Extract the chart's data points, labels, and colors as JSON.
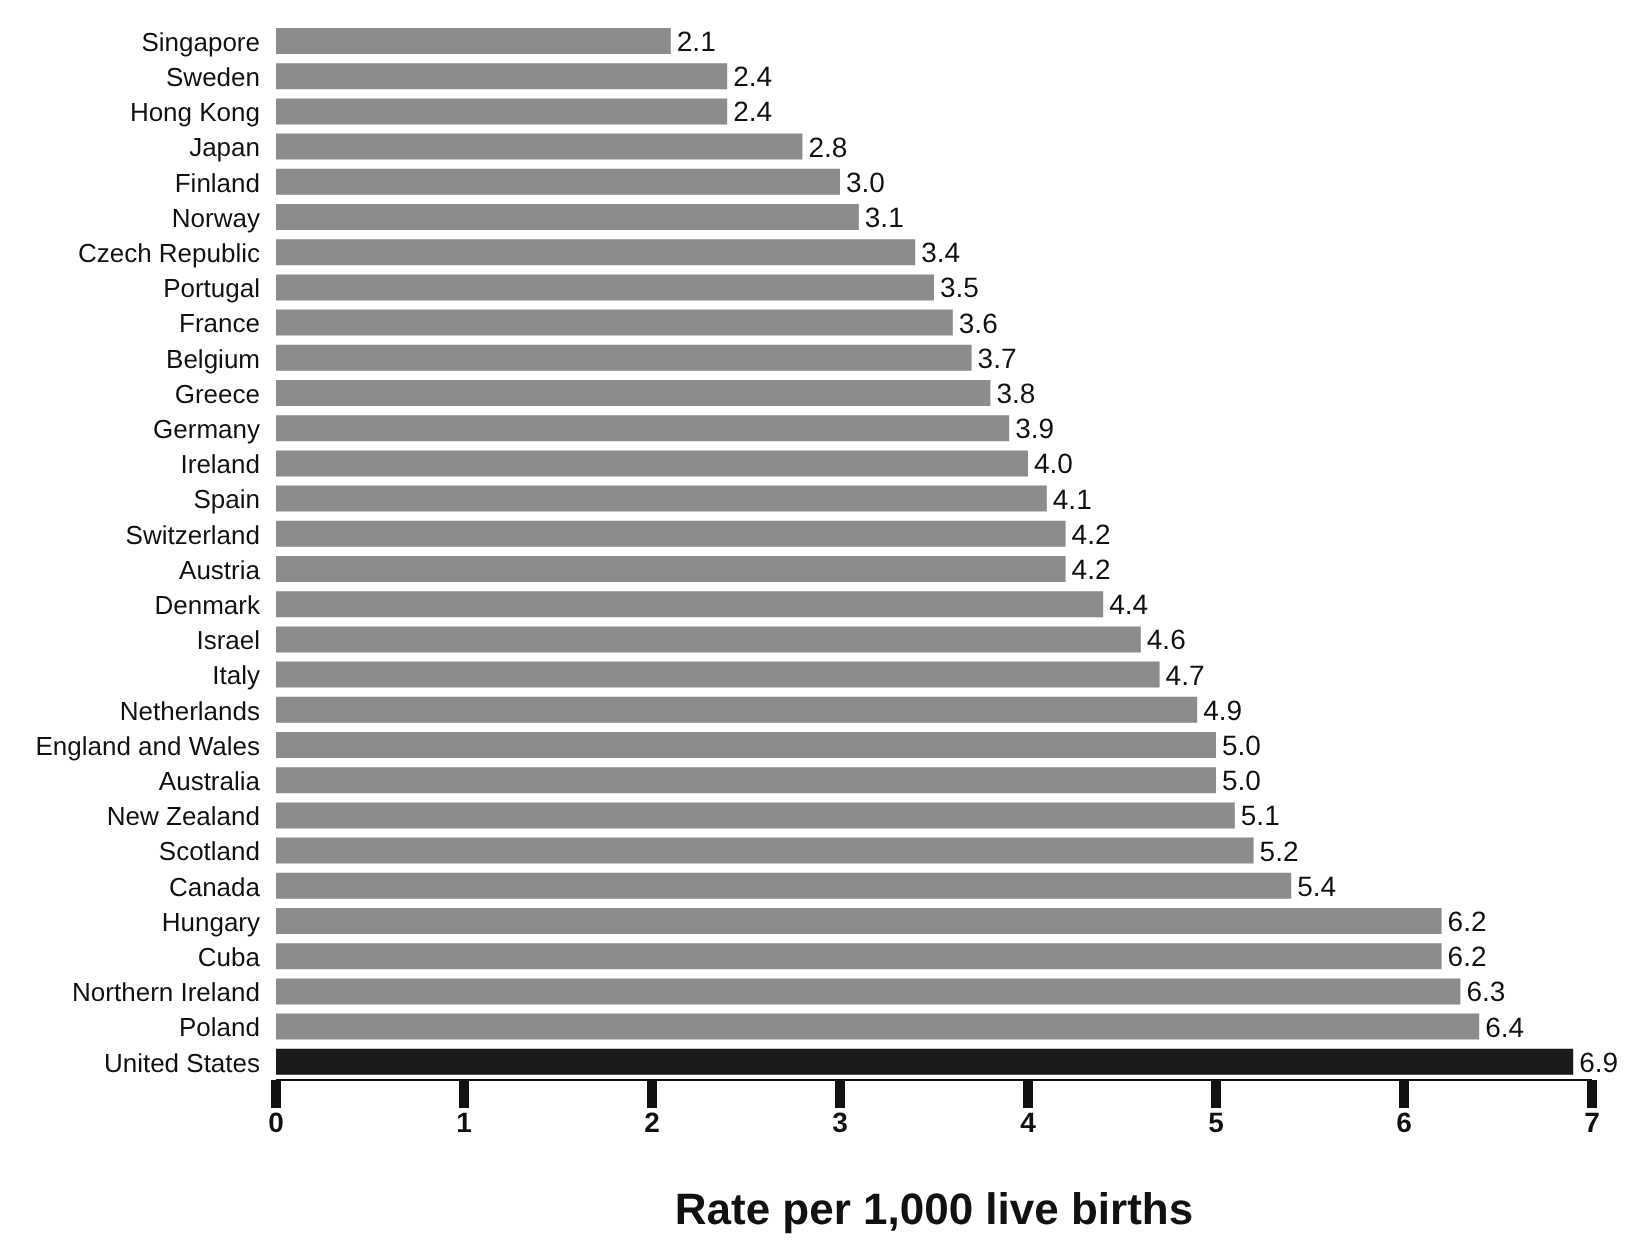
{
  "chart_data": {
    "type": "bar",
    "orientation": "horizontal",
    "xlabel": "Rate per 1,000 live births",
    "categories": [
      "Singapore",
      "Sweden",
      "Hong Kong",
      "Japan",
      "Finland",
      "Norway",
      "Czech Republic",
      "Portugal",
      "France",
      "Belgium",
      "Greece",
      "Germany",
      "Ireland",
      "Spain",
      "Switzerland",
      "Austria",
      "Denmark",
      "Israel",
      "Italy",
      "Netherlands",
      "England and Wales",
      "Australia",
      "New Zealand",
      "Scotland",
      "Canada",
      "Hungary",
      "Cuba",
      "Northern Ireland",
      "Poland",
      "United States"
    ],
    "values": [
      2.1,
      2.4,
      2.4,
      2.8,
      3.0,
      3.1,
      3.4,
      3.5,
      3.6,
      3.7,
      3.8,
      3.9,
      4.0,
      4.1,
      4.2,
      4.2,
      4.4,
      4.6,
      4.7,
      4.9,
      5.0,
      5.0,
      5.1,
      5.2,
      5.4,
      6.2,
      6.2,
      6.3,
      6.4,
      6.9
    ],
    "value_labels": [
      "2.1",
      "2.4",
      "2.4",
      "2.8",
      "3.0",
      "3.1",
      "3.4",
      "3.5",
      "3.6",
      "3.7",
      "3.8",
      "3.9",
      "4.0",
      "4.1",
      "4.2",
      "4.2",
      "4.4",
      "4.6",
      "4.7",
      "4.9",
      "5.0",
      "5.0",
      "5.1",
      "5.2",
      "5.4",
      "6.2",
      "6.2",
      "6.3",
      "6.4",
      "6.9"
    ],
    "colors": [
      "#8c8c8c",
      "#8c8c8c",
      "#8c8c8c",
      "#8c8c8c",
      "#8c8c8c",
      "#8c8c8c",
      "#8c8c8c",
      "#8c8c8c",
      "#8c8c8c",
      "#8c8c8c",
      "#8c8c8c",
      "#8c8c8c",
      "#8c8c8c",
      "#8c8c8c",
      "#8c8c8c",
      "#8c8c8c",
      "#8c8c8c",
      "#8c8c8c",
      "#8c8c8c",
      "#8c8c8c",
      "#8c8c8c",
      "#8c8c8c",
      "#8c8c8c",
      "#8c8c8c",
      "#8c8c8c",
      "#8c8c8c",
      "#8c8c8c",
      "#8c8c8c",
      "#8c8c8c",
      "#1a1a1a"
    ],
    "xlim": [
      0,
      7
    ],
    "xticks": [
      0,
      1,
      2,
      3,
      4,
      5,
      6,
      7
    ]
  }
}
